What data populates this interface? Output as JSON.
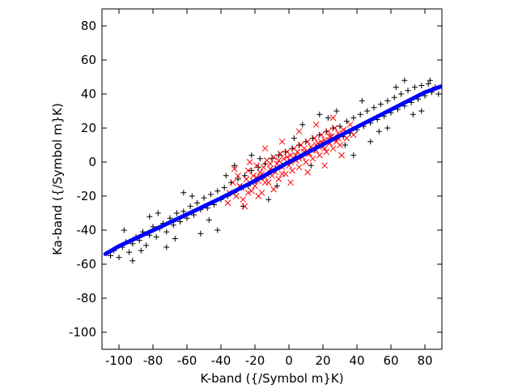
{
  "chart_data": {
    "type": "scatter",
    "xlabel": "K-band ({/Symbol m}K)",
    "ylabel": "Ka-band ({/Symbol m}K)",
    "xlim": [
      -110,
      90
    ],
    "ylim": [
      -110,
      90
    ],
    "x_ticks": [
      -100,
      -80,
      -60,
      -40,
      -20,
      0,
      20,
      40,
      60,
      80
    ],
    "y_ticks": [
      -100,
      -80,
      -60,
      -40,
      -20,
      0,
      20,
      40,
      60,
      80
    ],
    "grid": false,
    "colors": {
      "black_series": "#000000",
      "red_series": "#ff0000",
      "fit_line": "#0000ff"
    },
    "series": [
      {
        "marker": "+",
        "color": "#000000",
        "points": [
          [
            -105,
            -55
          ],
          [
            -103,
            -52
          ],
          [
            -100,
            -56
          ],
          [
            -98,
            -50
          ],
          [
            -96,
            -47
          ],
          [
            -94,
            -53
          ],
          [
            -92,
            -48
          ],
          [
            -90,
            -44
          ],
          [
            -88,
            -46
          ],
          [
            -86,
            -41
          ],
          [
            -84,
            -49
          ],
          [
            -82,
            -43
          ],
          [
            -80,
            -38
          ],
          [
            -78,
            -44
          ],
          [
            -76,
            -39
          ],
          [
            -74,
            -36
          ],
          [
            -72,
            -41
          ],
          [
            -70,
            -33
          ],
          [
            -68,
            -37
          ],
          [
            -66,
            -30
          ],
          [
            -64,
            -35
          ],
          [
            -62,
            -29
          ],
          [
            -60,
            -33
          ],
          [
            -58,
            -26
          ],
          [
            -56,
            -31
          ],
          [
            -54,
            -24
          ],
          [
            -52,
            -28
          ],
          [
            -50,
            -21
          ],
          [
            -48,
            -27
          ],
          [
            -46,
            -19
          ],
          [
            -44,
            -25
          ],
          [
            -42,
            -17
          ],
          [
            -40,
            -22
          ],
          [
            -38,
            -15
          ],
          [
            -36,
            -20
          ],
          [
            -34,
            -12
          ],
          [
            -32,
            -18
          ],
          [
            -30,
            -10
          ],
          [
            -28,
            -15
          ],
          [
            -26,
            -8
          ],
          [
            -24,
            -14
          ],
          [
            -22,
            -5
          ],
          [
            -20,
            -11
          ],
          [
            -18,
            -3
          ],
          [
            -16,
            -9
          ],
          [
            -14,
            -1
          ],
          [
            -12,
            -7
          ],
          [
            -10,
            2
          ],
          [
            -8,
            -4
          ],
          [
            -6,
            4
          ],
          [
            -4,
            -2
          ],
          [
            -2,
            6
          ],
          [
            0,
            0
          ],
          [
            2,
            8
          ],
          [
            4,
            2
          ],
          [
            6,
            10
          ],
          [
            8,
            4
          ],
          [
            10,
            12
          ],
          [
            12,
            6
          ],
          [
            14,
            14
          ],
          [
            16,
            8
          ],
          [
            18,
            16
          ],
          [
            20,
            10
          ],
          [
            22,
            18
          ],
          [
            24,
            12
          ],
          [
            26,
            20
          ],
          [
            28,
            14
          ],
          [
            30,
            21
          ],
          [
            32,
            15
          ],
          [
            34,
            24
          ],
          [
            36,
            17
          ],
          [
            38,
            26
          ],
          [
            40,
            19
          ],
          [
            42,
            28
          ],
          [
            44,
            21
          ],
          [
            46,
            30
          ],
          [
            48,
            23
          ],
          [
            50,
            32
          ],
          [
            52,
            25
          ],
          [
            54,
            34
          ],
          [
            56,
            27
          ],
          [
            58,
            36
          ],
          [
            60,
            29
          ],
          [
            62,
            38
          ],
          [
            64,
            31
          ],
          [
            66,
            40
          ],
          [
            68,
            33
          ],
          [
            70,
            42
          ],
          [
            72,
            35
          ],
          [
            74,
            44
          ],
          [
            76,
            37
          ],
          [
            78,
            45
          ],
          [
            80,
            39
          ],
          [
            82,
            46
          ],
          [
            84,
            41
          ],
          [
            86,
            44
          ],
          [
            -97,
            -40
          ],
          [
            -87,
            -52
          ],
          [
            -77,
            -30
          ],
          [
            -67,
            -45
          ],
          [
            -57,
            -20
          ],
          [
            -47,
            -34
          ],
          [
            -37,
            -8
          ],
          [
            -27,
            -26
          ],
          [
            -17,
            2
          ],
          [
            -7,
            -14
          ],
          [
            3,
            14
          ],
          [
            13,
            -2
          ],
          [
            23,
            26
          ],
          [
            33,
            10
          ],
          [
            43,
            36
          ],
          [
            53,
            18
          ],
          [
            63,
            44
          ],
          [
            73,
            28
          ],
          [
            83,
            48
          ],
          [
            -92,
            -58
          ],
          [
            -62,
            -18
          ],
          [
            -42,
            -40
          ],
          [
            -22,
            4
          ],
          [
            18,
            28
          ],
          [
            38,
            4
          ],
          [
            58,
            20
          ],
          [
            78,
            30
          ],
          [
            -82,
            -32
          ],
          [
            -52,
            -42
          ],
          [
            -32,
            -2
          ],
          [
            28,
            30
          ],
          [
            48,
            12
          ],
          [
            68,
            48
          ],
          [
            -72,
            -50
          ],
          [
            -12,
            -22
          ],
          [
            8,
            22
          ],
          [
            88,
            40
          ]
        ]
      },
      {
        "marker": "x",
        "color": "#ff0000",
        "points": [
          [
            -35,
            -18
          ],
          [
            -33,
            -12
          ],
          [
            -31,
            -20
          ],
          [
            -30,
            -8
          ],
          [
            -28,
            -15
          ],
          [
            -27,
            -22
          ],
          [
            -25,
            -10
          ],
          [
            -24,
            -5
          ],
          [
            -22,
            -17
          ],
          [
            -21,
            -8
          ],
          [
            -20,
            -14
          ],
          [
            -19,
            -2
          ],
          [
            -18,
            -11
          ],
          [
            -17,
            -6
          ],
          [
            -16,
            -18
          ],
          [
            -15,
            -3
          ],
          [
            -14,
            -9
          ],
          [
            -13,
            1
          ],
          [
            -12,
            -12
          ],
          [
            -11,
            -4
          ],
          [
            -10,
            -8
          ],
          [
            -9,
            3
          ],
          [
            -8,
            -6
          ],
          [
            -7,
            -1
          ],
          [
            -6,
            -10
          ],
          [
            -5,
            5
          ],
          [
            -4,
            -3
          ],
          [
            -3,
            2
          ],
          [
            -2,
            -7
          ],
          [
            -1,
            6
          ],
          [
            0,
            -2
          ],
          [
            1,
            4
          ],
          [
            2,
            -5
          ],
          [
            3,
            8
          ],
          [
            4,
            1
          ],
          [
            5,
            6
          ],
          [
            6,
            -3
          ],
          [
            7,
            10
          ],
          [
            8,
            3
          ],
          [
            9,
            8
          ],
          [
            10,
            0
          ],
          [
            11,
            12
          ],
          [
            12,
            5
          ],
          [
            13,
            9
          ],
          [
            14,
            2
          ],
          [
            15,
            14
          ],
          [
            16,
            7
          ],
          [
            17,
            11
          ],
          [
            18,
            4
          ],
          [
            19,
            16
          ],
          [
            20,
            9
          ],
          [
            21,
            13
          ],
          [
            22,
            6
          ],
          [
            23,
            18
          ],
          [
            24,
            11
          ],
          [
            25,
            15
          ],
          [
            26,
            8
          ],
          [
            27,
            20
          ],
          [
            28,
            12
          ],
          [
            29,
            17
          ],
          [
            30,
            10
          ],
          [
            32,
            19
          ],
          [
            34,
            14
          ],
          [
            36,
            22
          ],
          [
            38,
            16
          ],
          [
            -36,
            -24
          ],
          [
            -32,
            -4
          ],
          [
            -26,
            -26
          ],
          [
            -23,
            0
          ],
          [
            -18,
            -20
          ],
          [
            -14,
            8
          ],
          [
            -9,
            -16
          ],
          [
            -4,
            12
          ],
          [
            1,
            -12
          ],
          [
            6,
            18
          ],
          [
            11,
            -6
          ],
          [
            16,
            22
          ],
          [
            21,
            -2
          ],
          [
            26,
            26
          ],
          [
            31,
            4
          ],
          [
            -29,
            -14
          ],
          [
            -24,
            -18
          ],
          [
            -19,
            -9
          ],
          [
            -14,
            -12
          ],
          [
            -9,
            -5
          ],
          [
            -4,
            -7
          ],
          [
            1,
            0
          ],
          [
            6,
            2
          ],
          [
            11,
            5
          ],
          [
            16,
            10
          ],
          [
            21,
            8
          ],
          [
            26,
            13
          ],
          [
            -11,
            -1
          ],
          [
            -6,
            1
          ],
          [
            -1,
            3
          ],
          [
            4,
            4
          ],
          [
            9,
            6
          ],
          [
            14,
            7
          ],
          [
            19,
            12
          ],
          [
            -16,
            -7
          ],
          [
            -21,
            -11
          ],
          [
            24,
            15
          ],
          [
            29,
            14
          ],
          [
            34,
            18
          ]
        ]
      },
      {
        "marker": "line",
        "color": "#0000ff",
        "points": [
          [
            -108,
            -54
          ],
          [
            -100,
            -49.4
          ],
          [
            -80,
            -40.1
          ],
          [
            -60,
            -30.7
          ],
          [
            -40,
            -21.2
          ],
          [
            -20,
            -11
          ],
          [
            0,
            0
          ],
          [
            20,
            10.4
          ],
          [
            40,
            20.6
          ],
          [
            60,
            30.8
          ],
          [
            80,
            41
          ],
          [
            90,
            44.6
          ]
        ]
      }
    ]
  }
}
